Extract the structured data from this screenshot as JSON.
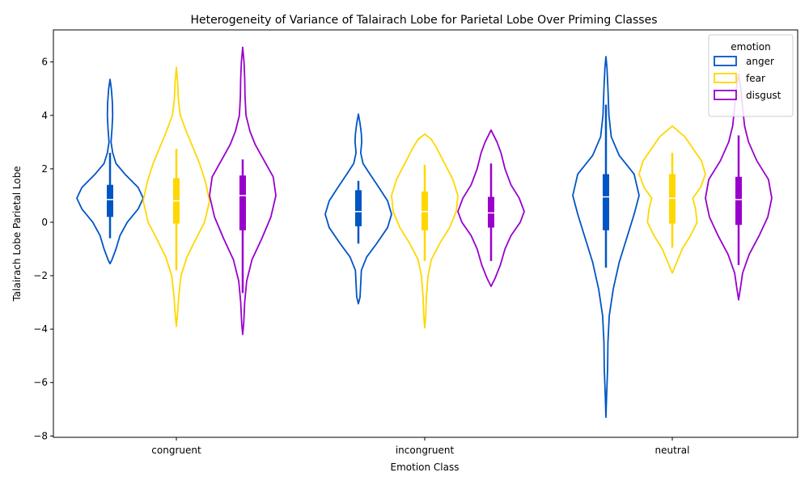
{
  "chart_data": {
    "type": "violin",
    "title": "Heterogeneity of Variance of Talairach Lobe for Parietal Lobe Over Priming Classes",
    "xlabel": "Emotion Class",
    "ylabel": "Talairach Lobe Parietal Lobe",
    "categories": [
      "congruent",
      "incongruent",
      "neutral"
    ],
    "ylim": [
      -8.05,
      7.2
    ],
    "yticks": [
      -8,
      -6,
      -4,
      -2,
      0,
      2,
      4,
      6
    ],
    "grid": false,
    "legend": {
      "title": "emotion",
      "placement": "top-right"
    },
    "series": [
      {
        "name": "anger",
        "color": "#0055c4",
        "groups": [
          {
            "category": "congruent",
            "min": -1.55,
            "max": 5.35,
            "q1": 0.2,
            "median": 0.85,
            "q3": 1.4,
            "whisker_low": -0.6,
            "whisker_high": 2.6,
            "profile": [
              [
                -1.55,
                0.0
              ],
              [
                -1.4,
                0.06
              ],
              [
                -1.0,
                0.18
              ],
              [
                -0.5,
                0.3
              ],
              [
                0.0,
                0.52
              ],
              [
                0.5,
                0.85
              ],
              [
                0.9,
                1.0
              ],
              [
                1.3,
                0.85
              ],
              [
                1.8,
                0.45
              ],
              [
                2.2,
                0.18
              ],
              [
                2.6,
                0.08
              ],
              [
                3.0,
                0.03
              ],
              [
                3.5,
                0.06
              ],
              [
                4.0,
                0.08
              ],
              [
                4.5,
                0.07
              ],
              [
                5.0,
                0.04
              ],
              [
                5.35,
                0.0
              ]
            ]
          },
          {
            "category": "incongruent",
            "min": -3.05,
            "max": 4.05,
            "q1": -0.15,
            "median": 0.4,
            "q3": 1.2,
            "whisker_low": -0.8,
            "whisker_high": 1.55,
            "profile": [
              [
                -3.05,
                0.0
              ],
              [
                -2.8,
                0.05
              ],
              [
                -2.3,
                0.07
              ],
              [
                -1.8,
                0.09
              ],
              [
                -1.3,
                0.25
              ],
              [
                -0.8,
                0.55
              ],
              [
                -0.2,
                0.88
              ],
              [
                0.3,
                1.0
              ],
              [
                0.8,
                0.88
              ],
              [
                1.3,
                0.62
              ],
              [
                1.8,
                0.35
              ],
              [
                2.2,
                0.14
              ],
              [
                2.6,
                0.07
              ],
              [
                3.0,
                0.1
              ],
              [
                3.3,
                0.09
              ],
              [
                3.7,
                0.05
              ],
              [
                4.05,
                0.0
              ]
            ]
          },
          {
            "category": "neutral",
            "min": -7.3,
            "max": 6.2,
            "q1": -0.3,
            "median": 0.95,
            "q3": 1.8,
            "whisker_low": -1.7,
            "whisker_high": 4.4,
            "profile": [
              [
                -7.3,
                0.0
              ],
              [
                -6.5,
                0.02
              ],
              [
                -5.5,
                0.05
              ],
              [
                -4.5,
                0.06
              ],
              [
                -3.5,
                0.1
              ],
              [
                -2.5,
                0.22
              ],
              [
                -1.5,
                0.4
              ],
              [
                -0.5,
                0.65
              ],
              [
                0.3,
                0.85
              ],
              [
                1.0,
                1.0
              ],
              [
                1.8,
                0.85
              ],
              [
                2.5,
                0.4
              ],
              [
                3.2,
                0.16
              ],
              [
                4.0,
                0.09
              ],
              [
                5.0,
                0.06
              ],
              [
                5.8,
                0.03
              ],
              [
                6.2,
                0.0
              ]
            ]
          }
        ]
      },
      {
        "name": "fear",
        "color": "#ffd700",
        "groups": [
          {
            "category": "congruent",
            "min": -3.9,
            "max": 5.8,
            "q1": -0.05,
            "median": 0.8,
            "q3": 1.65,
            "whisker_low": -1.8,
            "whisker_high": 2.75,
            "profile": [
              [
                -3.9,
                0.0
              ],
              [
                -3.5,
                0.03
              ],
              [
                -2.8,
                0.07
              ],
              [
                -2.0,
                0.14
              ],
              [
                -1.3,
                0.32
              ],
              [
                -0.6,
                0.6
              ],
              [
                0.0,
                0.85
              ],
              [
                0.8,
                1.0
              ],
              [
                1.5,
                0.88
              ],
              [
                2.2,
                0.7
              ],
              [
                2.8,
                0.5
              ],
              [
                3.4,
                0.3
              ],
              [
                4.0,
                0.12
              ],
              [
                4.6,
                0.06
              ],
              [
                5.2,
                0.04
              ],
              [
                5.8,
                0.0
              ]
            ]
          },
          {
            "category": "incongruent",
            "min": -3.95,
            "max": 3.3,
            "q1": -0.3,
            "median": 0.4,
            "q3": 1.15,
            "whisker_low": -1.45,
            "whisker_high": 2.15,
            "profile": [
              [
                -3.95,
                0.0
              ],
              [
                -3.5,
                0.03
              ],
              [
                -2.8,
                0.05
              ],
              [
                -2.0,
                0.1
              ],
              [
                -1.4,
                0.2
              ],
              [
                -0.8,
                0.45
              ],
              [
                -0.2,
                0.75
              ],
              [
                0.4,
                0.95
              ],
              [
                1.0,
                1.0
              ],
              [
                1.6,
                0.85
              ],
              [
                2.2,
                0.6
              ],
              [
                2.8,
                0.35
              ],
              [
                3.1,
                0.2
              ],
              [
                3.3,
                0.0
              ]
            ]
          },
          {
            "category": "neutral",
            "min": -1.9,
            "max": 3.6,
            "q1": -0.05,
            "median": 0.9,
            "q3": 1.8,
            "whisker_low": -0.95,
            "whisker_high": 2.6,
            "profile": [
              [
                -1.9,
                0.0
              ],
              [
                -1.6,
                0.1
              ],
              [
                -1.0,
                0.3
              ],
              [
                -0.5,
                0.55
              ],
              [
                0.0,
                0.75
              ],
              [
                0.5,
                0.7
              ],
              [
                0.9,
                0.62
              ],
              [
                1.3,
                0.85
              ],
              [
                1.8,
                1.0
              ],
              [
                2.3,
                0.88
              ],
              [
                2.8,
                0.6
              ],
              [
                3.2,
                0.38
              ],
              [
                3.6,
                0.0
              ]
            ]
          }
        ]
      },
      {
        "name": "disgust",
        "color": "#9900cc",
        "groups": [
          {
            "category": "congruent",
            "min": -4.2,
            "max": 6.55,
            "q1": -0.3,
            "median": 1.0,
            "q3": 1.75,
            "whisker_low": -2.65,
            "whisker_high": 2.35,
            "profile": [
              [
                -4.2,
                0.0
              ],
              [
                -3.8,
                0.03
              ],
              [
                -3.0,
                0.06
              ],
              [
                -2.2,
                0.12
              ],
              [
                -1.4,
                0.28
              ],
              [
                -0.6,
                0.58
              ],
              [
                0.2,
                0.85
              ],
              [
                1.0,
                1.0
              ],
              [
                1.7,
                0.92
              ],
              [
                2.3,
                0.65
              ],
              [
                2.9,
                0.38
              ],
              [
                3.4,
                0.22
              ],
              [
                4.0,
                0.1
              ],
              [
                4.7,
                0.07
              ],
              [
                5.4,
                0.06
              ],
              [
                6.0,
                0.04
              ],
              [
                6.55,
                0.0
              ]
            ]
          },
          {
            "category": "incongruent",
            "min": -2.4,
            "max": 3.45,
            "q1": -0.2,
            "median": 0.35,
            "q3": 0.95,
            "whisker_low": -1.45,
            "whisker_high": 2.2,
            "profile": [
              [
                -2.4,
                0.0
              ],
              [
                -2.1,
                0.12
              ],
              [
                -1.6,
                0.28
              ],
              [
                -1.0,
                0.42
              ],
              [
                -0.5,
                0.6
              ],
              [
                0.0,
                0.88
              ],
              [
                0.4,
                1.0
              ],
              [
                0.9,
                0.85
              ],
              [
                1.4,
                0.6
              ],
              [
                2.0,
                0.42
              ],
              [
                2.6,
                0.3
              ],
              [
                3.0,
                0.18
              ],
              [
                3.45,
                0.0
              ]
            ]
          },
          {
            "category": "neutral",
            "min": -2.9,
            "max": 5.55,
            "q1": -0.1,
            "median": 0.85,
            "q3": 1.7,
            "whisker_low": -1.6,
            "whisker_high": 3.25,
            "profile": [
              [
                -2.9,
                0.0
              ],
              [
                -2.5,
                0.05
              ],
              [
                -1.9,
                0.12
              ],
              [
                -1.2,
                0.32
              ],
              [
                -0.5,
                0.62
              ],
              [
                0.2,
                0.88
              ],
              [
                0.9,
                1.0
              ],
              [
                1.6,
                0.9
              ],
              [
                2.3,
                0.55
              ],
              [
                3.0,
                0.3
              ],
              [
                3.6,
                0.18
              ],
              [
                4.3,
                0.12
              ],
              [
                5.0,
                0.07
              ],
              [
                5.55,
                0.0
              ]
            ]
          }
        ]
      }
    ]
  }
}
